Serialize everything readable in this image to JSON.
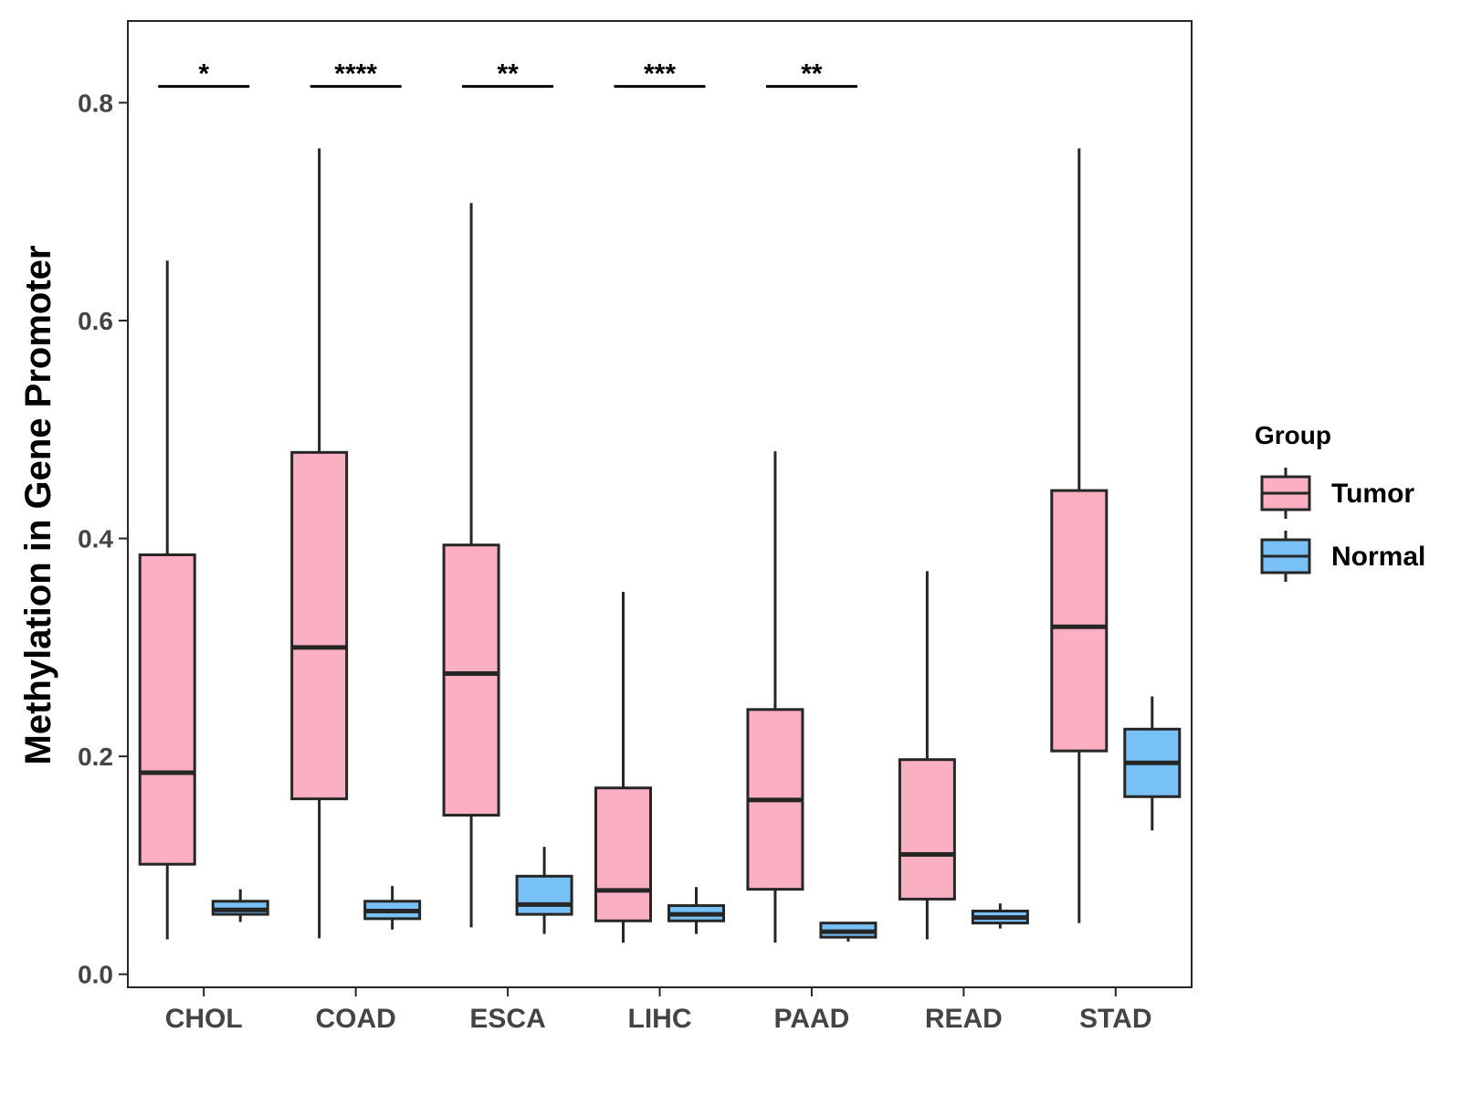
{
  "chart_data": {
    "type": "boxplot",
    "title": "",
    "xlabel": "",
    "ylabel": "Methylation in Gene Promoter",
    "ylim": [
      -0.012,
      0.875
    ],
    "yticks": [
      0.0,
      0.2,
      0.4,
      0.6,
      0.8
    ],
    "ytick_labels": [
      "0.0",
      "0.2",
      "0.4",
      "0.6",
      "0.8"
    ],
    "categories": [
      "CHOL",
      "COAD",
      "ESCA",
      "LIHC",
      "PAAD",
      "READ",
      "STAD"
    ],
    "legend": {
      "title": "Group",
      "position": "right",
      "entries": [
        "Tumor",
        "Normal"
      ]
    },
    "colors": {
      "Tumor": "#FAB0C2",
      "Normal": "#78C1F7",
      "outline": "#262626"
    },
    "series": [
      {
        "name": "Tumor",
        "boxes": [
          {
            "category": "CHOL",
            "min": 0.032,
            "q1": 0.101,
            "median": 0.185,
            "q3": 0.385,
            "max": 0.655
          },
          {
            "category": "COAD",
            "min": 0.033,
            "q1": 0.161,
            "median": 0.3,
            "q3": 0.479,
            "max": 0.758
          },
          {
            "category": "ESCA",
            "min": 0.043,
            "q1": 0.146,
            "median": 0.276,
            "q3": 0.394,
            "max": 0.708
          },
          {
            "category": "LIHC",
            "min": 0.029,
            "q1": 0.049,
            "median": 0.077,
            "q3": 0.171,
            "max": 0.351
          },
          {
            "category": "PAAD",
            "min": 0.029,
            "q1": 0.078,
            "median": 0.16,
            "q3": 0.243,
            "max": 0.48
          },
          {
            "category": "READ",
            "min": 0.032,
            "q1": 0.069,
            "median": 0.11,
            "q3": 0.197,
            "max": 0.37
          },
          {
            "category": "STAD",
            "min": 0.047,
            "q1": 0.205,
            "median": 0.319,
            "q3": 0.444,
            "max": 0.758
          }
        ]
      },
      {
        "name": "Normal",
        "boxes": [
          {
            "category": "CHOL",
            "min": 0.048,
            "q1": 0.055,
            "median": 0.059,
            "q3": 0.067,
            "max": 0.078
          },
          {
            "category": "COAD",
            "min": 0.041,
            "q1": 0.051,
            "median": 0.058,
            "q3": 0.067,
            "max": 0.081
          },
          {
            "category": "ESCA",
            "min": 0.037,
            "q1": 0.055,
            "median": 0.064,
            "q3": 0.09,
            "max": 0.117
          },
          {
            "category": "LIHC",
            "min": 0.037,
            "q1": 0.049,
            "median": 0.055,
            "q3": 0.063,
            "max": 0.08
          },
          {
            "category": "PAAD",
            "min": 0.03,
            "q1": 0.034,
            "median": 0.039,
            "q3": 0.047,
            "max": 0.047
          },
          {
            "category": "READ",
            "min": 0.042,
            "q1": 0.047,
            "median": 0.052,
            "q3": 0.058,
            "max": 0.065
          },
          {
            "category": "STAD",
            "min": 0.132,
            "q1": 0.163,
            "median": 0.194,
            "q3": 0.225,
            "max": 0.255
          }
        ]
      }
    ],
    "annotations": [
      {
        "category": "CHOL",
        "text": "*",
        "y": 0.815
      },
      {
        "category": "COAD",
        "text": "****",
        "y": 0.815
      },
      {
        "category": "ESCA",
        "text": "**",
        "y": 0.815
      },
      {
        "category": "LIHC",
        "text": "***",
        "y": 0.815
      },
      {
        "category": "PAAD",
        "text": "**",
        "y": 0.815
      }
    ]
  }
}
